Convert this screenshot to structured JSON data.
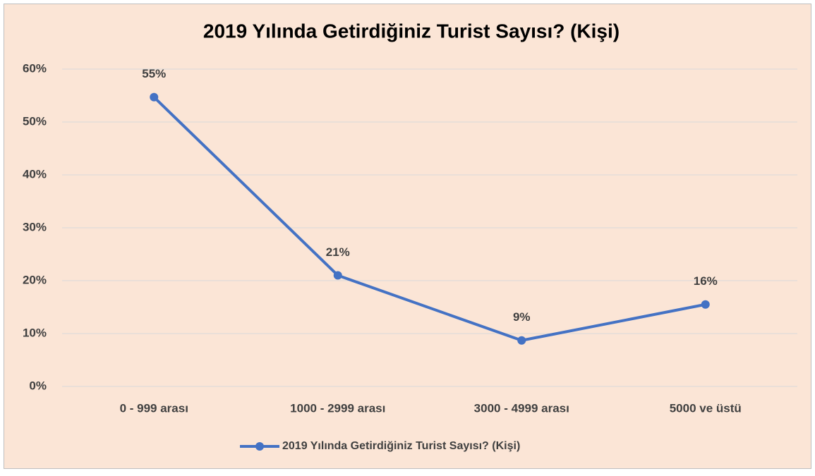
{
  "chart_data": {
    "type": "line",
    "title": "2019 Yılında Getirdiğiniz Turist Sayısı? (Kişi)",
    "categories": [
      "0 - 999 arası",
      "1000 - 2999 arası",
      "3000 - 4999 arası",
      "5000 ve üstü"
    ],
    "series": [
      {
        "name": "2019 Yılında Getirdiğiniz Turist Sayısı? (Kişi)",
        "color": "#4472c4",
        "values": [
          54.7,
          21,
          8.7,
          15.5
        ],
        "value_labels": [
          "55%",
          "21%",
          "9%",
          "16%"
        ]
      }
    ],
    "ylim": [
      0,
      60
    ],
    "yticks": [
      {
        "value": 0,
        "label": "0%"
      },
      {
        "value": 10,
        "label": "10%"
      },
      {
        "value": 20,
        "label": "20%"
      },
      {
        "value": 30,
        "label": "30%"
      },
      {
        "value": 40,
        "label": "40%"
      },
      {
        "value": 50,
        "label": "50%"
      },
      {
        "value": 60,
        "label": "60%"
      }
    ],
    "grid": true,
    "legend": "bottom"
  }
}
